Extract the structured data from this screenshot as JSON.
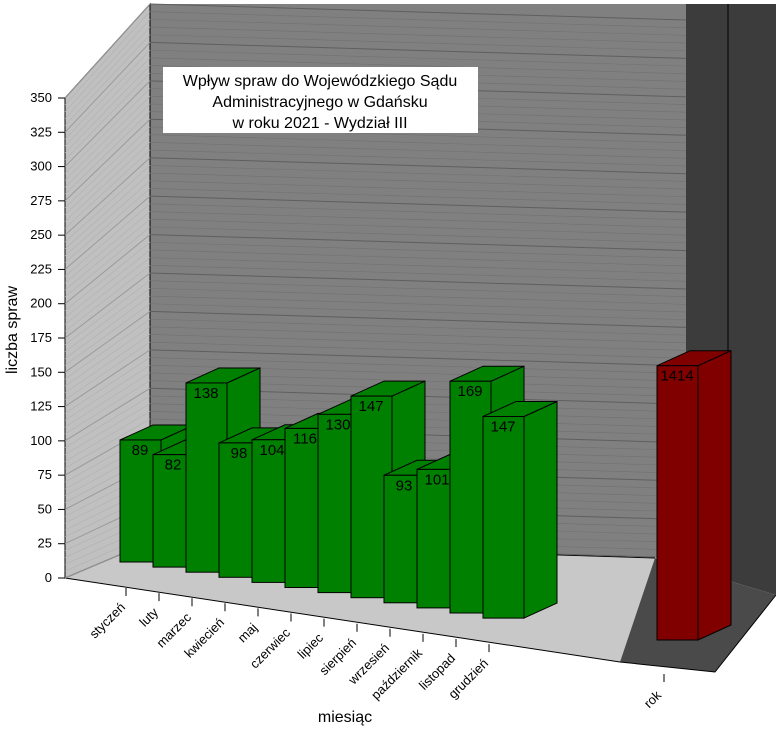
{
  "chart_data": {
    "type": "bar",
    "title": "Wpływ spraw do Wojewódzkiego Sądu Administracyjnego w Gdańsku w roku 2021 - Wydział III",
    "title_lines": [
      "Wpływ spraw do Wojewódzkiego Sądu",
      "Administracyjnego w Gdańsku",
      "w roku 2021 - Wydział III"
    ],
    "xlabel": "miesiąc",
    "ylabel": "liczba spraw",
    "ylim": [
      0,
      350
    ],
    "yticks": [
      0,
      25,
      50,
      75,
      100,
      125,
      150,
      175,
      200,
      225,
      250,
      275,
      300,
      325,
      350
    ],
    "grid": true,
    "categories": [
      "styczeń",
      "luty",
      "marzec",
      "kwiecień",
      "maj",
      "czerwiec",
      "lipiec",
      "sierpień",
      "wrzesień",
      "październik",
      "listopad",
      "grudzień"
    ],
    "values": [
      89,
      82,
      138,
      98,
      104,
      116,
      130,
      147,
      93,
      101,
      169,
      147
    ],
    "total": {
      "category": "rok",
      "value": 1414,
      "display_height": 200
    },
    "colors": {
      "monthly": "#008000",
      "total": "#800000",
      "back_wall": "#808080",
      "side_wall": "#c0c0c0",
      "floor": "#c8c8c8",
      "total_wall": "#3c3c3c"
    }
  }
}
